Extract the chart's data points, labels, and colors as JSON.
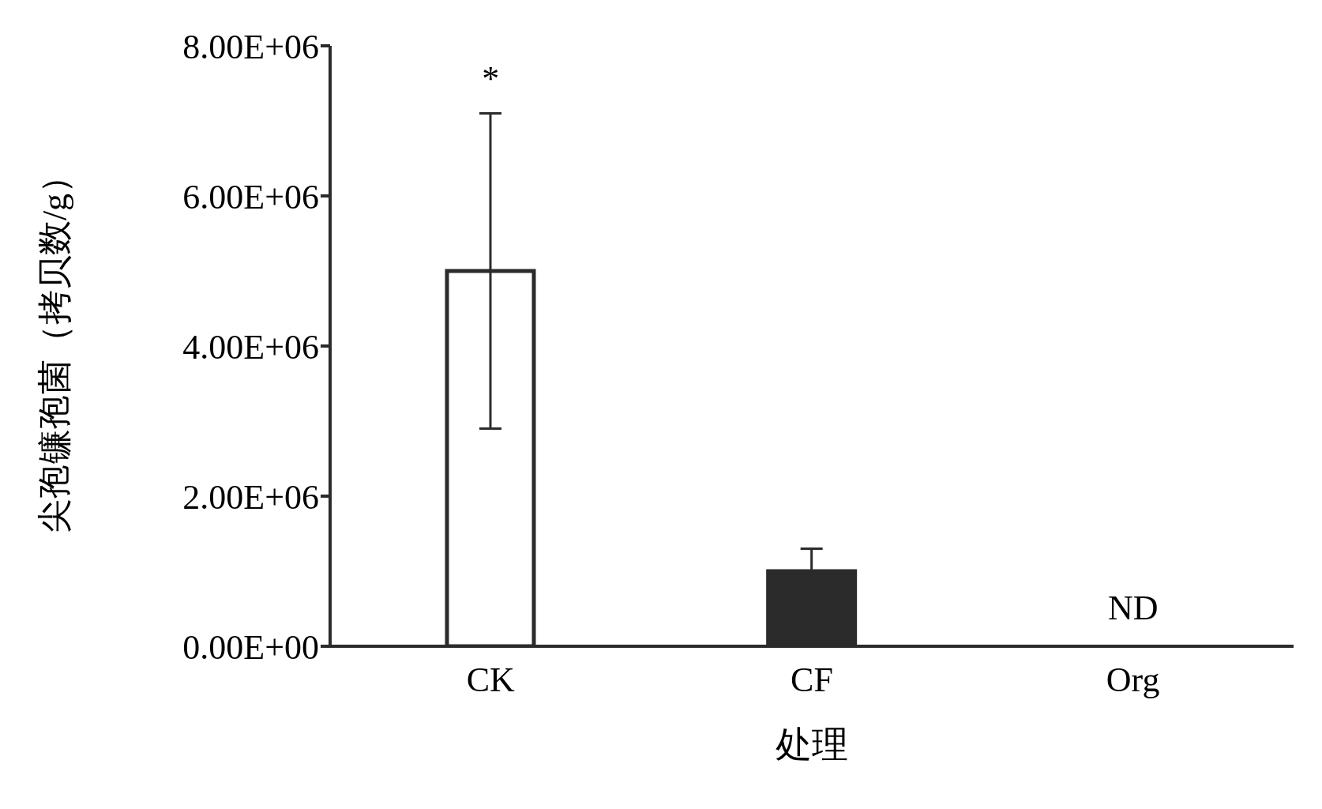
{
  "chart_data": {
    "type": "bar",
    "xlabel": "处理",
    "ylabel": "尖孢镰孢菌（拷贝数/g）",
    "categories": [
      "CK",
      "CF",
      "Org"
    ],
    "values": [
      5000000,
      1000000,
      null
    ],
    "colors": [
      "#ffffff",
      "#2b2b2b",
      "#2b2b2b"
    ],
    "errors": [
      2100000,
      300000,
      null
    ],
    "ylim": [
      0,
      8000000
    ],
    "yticks": [
      {
        "value": 0,
        "label": "0.00E+00"
      },
      {
        "value": 2000000,
        "label": "2.00E+06"
      },
      {
        "value": 4000000,
        "label": "4.00E+06"
      },
      {
        "value": 6000000,
        "label": "6.00E+06"
      },
      {
        "value": 8000000,
        "label": "8.00E+06"
      }
    ],
    "annotations": [
      "*",
      "ND"
    ],
    "grid": false,
    "legend": false
  }
}
